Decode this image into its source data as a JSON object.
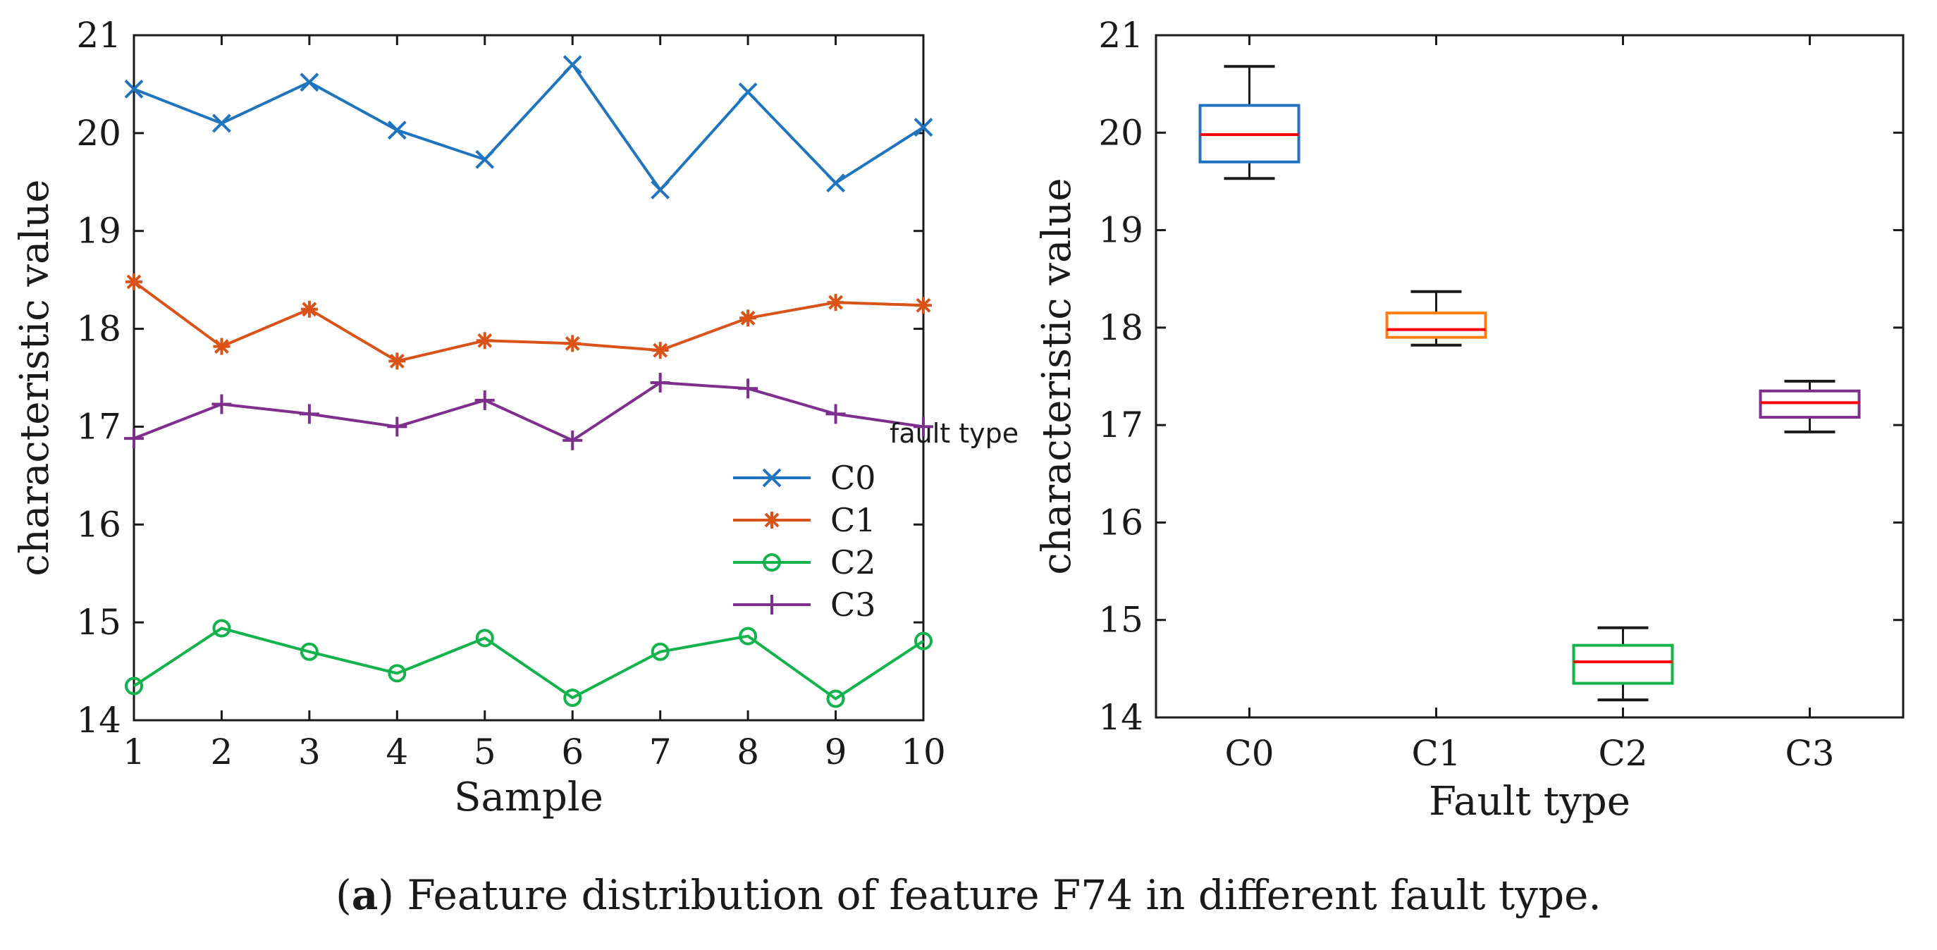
{
  "chart_data": [
    {
      "type": "line",
      "x": [
        1,
        2,
        3,
        4,
        5,
        6,
        7,
        8,
        9,
        10
      ],
      "xlim": [
        1,
        10
      ],
      "ylim": [
        14,
        21
      ],
      "xticks": [
        1,
        2,
        3,
        4,
        5,
        6,
        7,
        8,
        9,
        10
      ],
      "yticks": [
        14,
        15,
        16,
        17,
        18,
        19,
        20,
        21
      ],
      "xlabel": "Sample",
      "ylabel": "characteristic value",
      "legend_position": "lower-right",
      "annotation": "fault type",
      "series": [
        {
          "name": "C0",
          "color": "#1f74bd",
          "marker": "x",
          "values": [
            20.45,
            20.1,
            20.52,
            20.03,
            19.73,
            20.7,
            19.42,
            20.42,
            19.49,
            20.06
          ]
        },
        {
          "name": "C1",
          "color": "#d95319",
          "marker": "star",
          "values": [
            18.48,
            17.82,
            18.2,
            17.67,
            17.88,
            17.85,
            17.78,
            18.11,
            18.27,
            18.24
          ]
        },
        {
          "name": "C2",
          "color": "#11b34a",
          "marker": "circle",
          "values": [
            14.35,
            14.94,
            14.7,
            14.48,
            14.84,
            14.23,
            14.7,
            14.86,
            14.22,
            14.81
          ]
        },
        {
          "name": "C3",
          "color": "#7e2f8e",
          "marker": "plus",
          "values": [
            16.88,
            17.23,
            17.13,
            17.0,
            17.27,
            16.86,
            17.45,
            17.39,
            17.13,
            17.0
          ]
        }
      ]
    },
    {
      "type": "box",
      "categories": [
        "C0",
        "C1",
        "C2",
        "C3"
      ],
      "xlabel": "Fault type",
      "ylabel": "characteristic value",
      "ylim": [
        14,
        21
      ],
      "yticks": [
        14,
        15,
        16,
        17,
        18,
        19,
        20,
        21
      ],
      "median_color": "#ff0000",
      "boxes": [
        {
          "name": "C0",
          "color": "#1f74bd",
          "min": 19.53,
          "q1": 19.7,
          "median": 19.98,
          "q3": 20.28,
          "max": 20.68
        },
        {
          "name": "C1",
          "color": "#ff7f0e",
          "min": 17.82,
          "q1": 17.9,
          "median": 17.98,
          "q3": 18.15,
          "max": 18.37
        },
        {
          "name": "C2",
          "color": "#11b34a",
          "min": 14.18,
          "q1": 14.35,
          "median": 14.57,
          "q3": 14.74,
          "max": 14.92
        },
        {
          "name": "C3",
          "color": "#7e2f8e",
          "min": 16.93,
          "q1": 17.08,
          "median": 17.23,
          "q3": 17.35,
          "max": 17.45
        }
      ]
    }
  ],
  "caption": {
    "open": "(",
    "letter": "a",
    "text": ") Feature distribution of feature F74 in different fault type."
  }
}
